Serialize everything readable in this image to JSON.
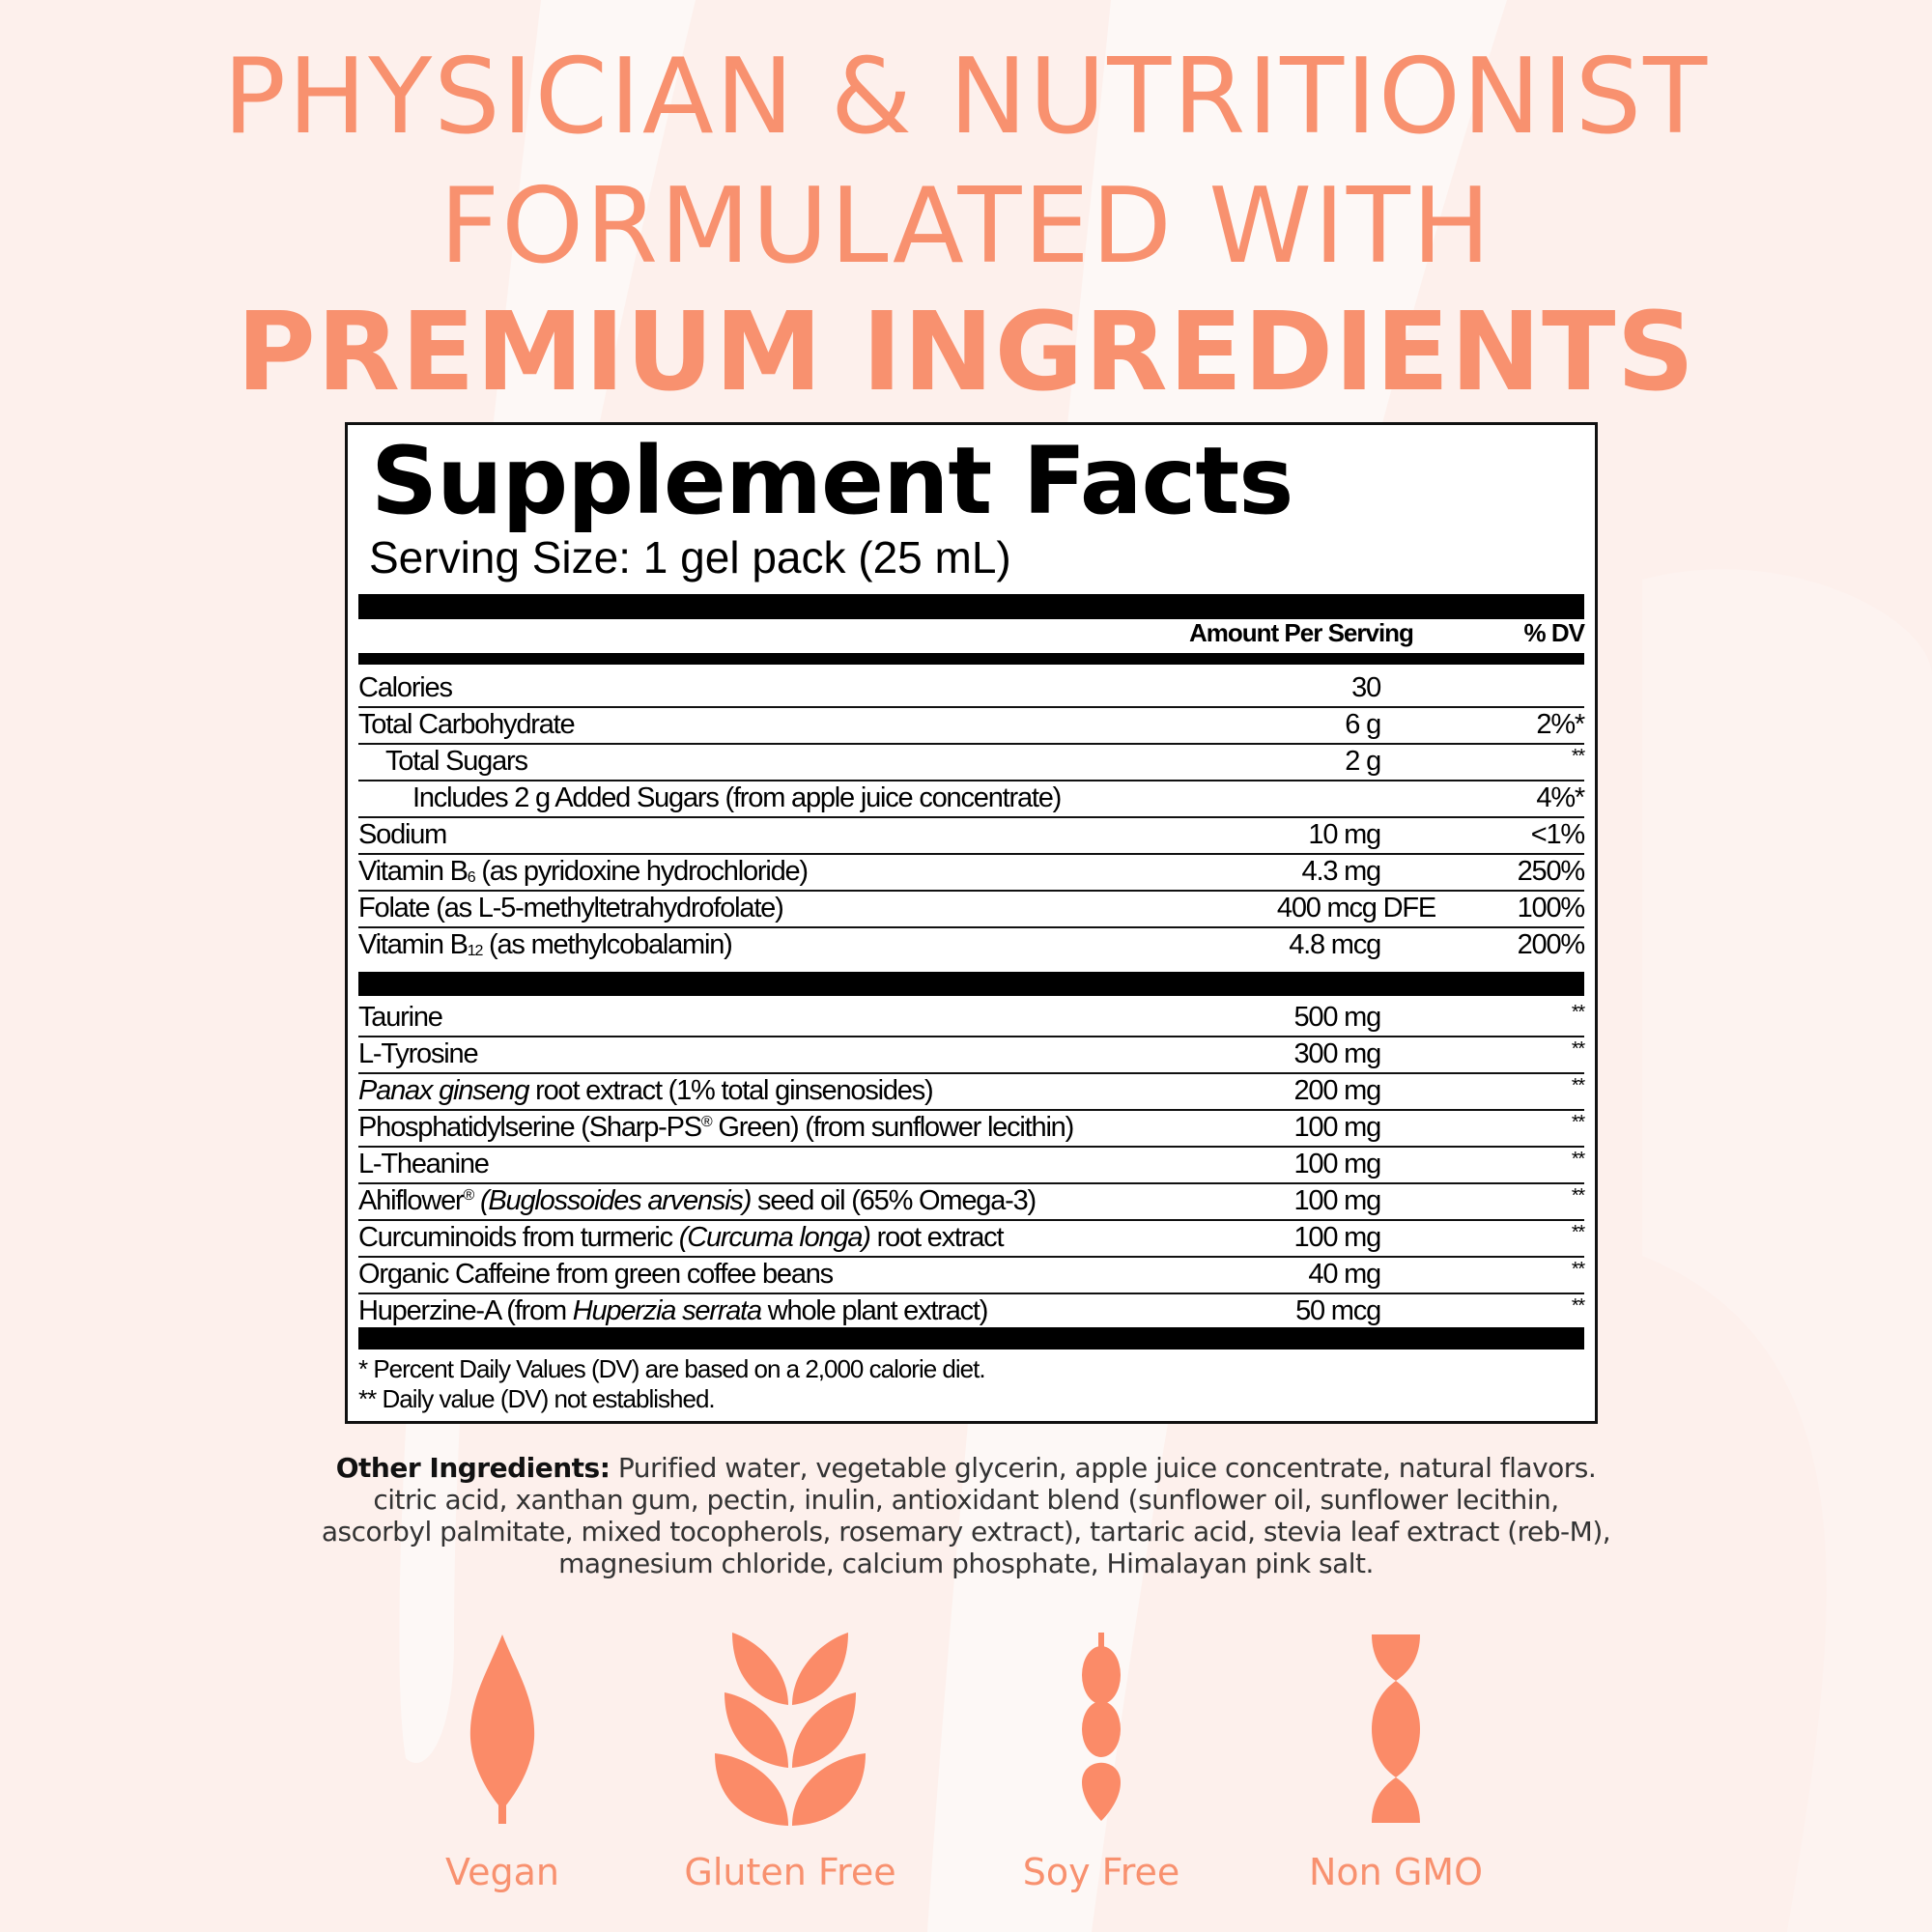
{
  "headline": {
    "line1": "PHYSICIAN & NUTRITIONIST",
    "line2": "FORMULATED WITH",
    "line3": "PREMIUM INGREDIENTS"
  },
  "colors": {
    "accent": "#f8916f",
    "icon": "#fb8b68",
    "background": "#fdf0ec"
  },
  "facts": {
    "title": "Supplement Facts",
    "serving_size": "Serving Size: 1 gel pack (25 mL)",
    "header_amount": "Amount Per Serving",
    "header_dv": "% DV",
    "rows": [
      {
        "label": [
          {
            "text": "Calories"
          }
        ],
        "amount": "30",
        "dv": ""
      },
      {
        "label": [
          {
            "text": "Total Carbohydrate"
          }
        ],
        "amount": "6 g",
        "dv": "2%*"
      },
      {
        "label": [
          {
            "text": "Total Sugars"
          }
        ],
        "indent": 1,
        "amount": "2 g",
        "dv": "**"
      },
      {
        "label": [
          {
            "text": "Includes 2 g Added Sugars (from apple juice concentrate)"
          }
        ],
        "indent": 2,
        "amount": "",
        "dv": "4%*"
      },
      {
        "label": [
          {
            "text": "Sodium"
          }
        ],
        "amount": "10 mg",
        "dv": "<1%"
      },
      {
        "label": [
          {
            "text": "Vitamin B"
          },
          {
            "text": "6",
            "style": "sub"
          },
          {
            "text": " (as pyridoxine hydrochloride)"
          }
        ],
        "amount": "4.3 mg",
        "dv": "250%"
      },
      {
        "label": [
          {
            "text": "Folate (as L-5-methyltetrahydrofolate)"
          }
        ],
        "amount": "400 mcg DFE",
        "dv": "100%"
      },
      {
        "label": [
          {
            "text": "Vitamin B"
          },
          {
            "text": "12",
            "style": "sub"
          },
          {
            "text": " (as methylcobalamin)"
          }
        ],
        "amount": "4.8 mcg",
        "dv": "200%"
      }
    ],
    "rows2": [
      {
        "label": [
          {
            "text": "Taurine"
          }
        ],
        "amount": "500 mg",
        "dv": "**"
      },
      {
        "label": [
          {
            "text": "L-Tyrosine"
          }
        ],
        "amount": "300 mg",
        "dv": "**"
      },
      {
        "label": [
          {
            "text": "Panax ginseng",
            "style": "italic"
          },
          {
            "text": " root extract (1% total ginsenosides)"
          }
        ],
        "amount": "200 mg",
        "dv": "**"
      },
      {
        "label": [
          {
            "text": "Phosphatidylserine (Sharp-PS"
          },
          {
            "text": "®",
            "style": "sup"
          },
          {
            "text": " Green) (from sunflower lecithin)"
          }
        ],
        "amount": "100 mg",
        "dv": "**"
      },
      {
        "label": [
          {
            "text": "L-Theanine"
          }
        ],
        "amount": "100 mg",
        "dv": "**"
      },
      {
        "label": [
          {
            "text": "Ahiflower"
          },
          {
            "text": "®",
            "style": "sup"
          },
          {
            "text": " "
          },
          {
            "text": "(Buglossoides arvensis)",
            "style": "italic"
          },
          {
            "text": " seed oil (65% Omega-3)"
          }
        ],
        "amount": "100 mg",
        "dv": "**"
      },
      {
        "label": [
          {
            "text": "Curcuminoids from turmeric "
          },
          {
            "text": "(Curcuma longa)",
            "style": "italic"
          },
          {
            "text": " root extract"
          }
        ],
        "amount": "100 mg",
        "dv": "**"
      },
      {
        "label": [
          {
            "text": "Organic Caffeine from green coffee beans"
          }
        ],
        "amount": "40 mg",
        "dv": "**"
      },
      {
        "label": [
          {
            "text": "Huperzine-A (from "
          },
          {
            "text": "Huperzia serrata",
            "style": "italic"
          },
          {
            "text": " whole plant extract)"
          }
        ],
        "amount": "50 mcg",
        "dv": "**"
      }
    ],
    "footnote1": "* Percent Daily Values (DV) are based on a 2,000 calorie diet.",
    "footnote2": "** Daily value (DV) not established."
  },
  "other_ingredients": {
    "label": "Other Ingredients:",
    "text": " Purified water, vegetable glycerin, apple juice concentrate, natural flavors. citric acid, xanthan gum, pectin, inulin, antioxidant blend (sunflower oil, sunflower lecithin, ascorbyl palmitate, mixed tocopherols, rosemary extract), tartaric acid, stevia leaf extract (reb-M), magnesium chloride, calcium phosphate, Himalayan pink salt."
  },
  "badges": [
    {
      "label": "Vegan",
      "icon": "leaf-icon"
    },
    {
      "label": "Gluten Free",
      "icon": "wheat-icon"
    },
    {
      "label": "Soy Free",
      "icon": "soybean-pod-icon"
    },
    {
      "label": "Non GMO",
      "icon": "dna-helix-icon"
    }
  ]
}
